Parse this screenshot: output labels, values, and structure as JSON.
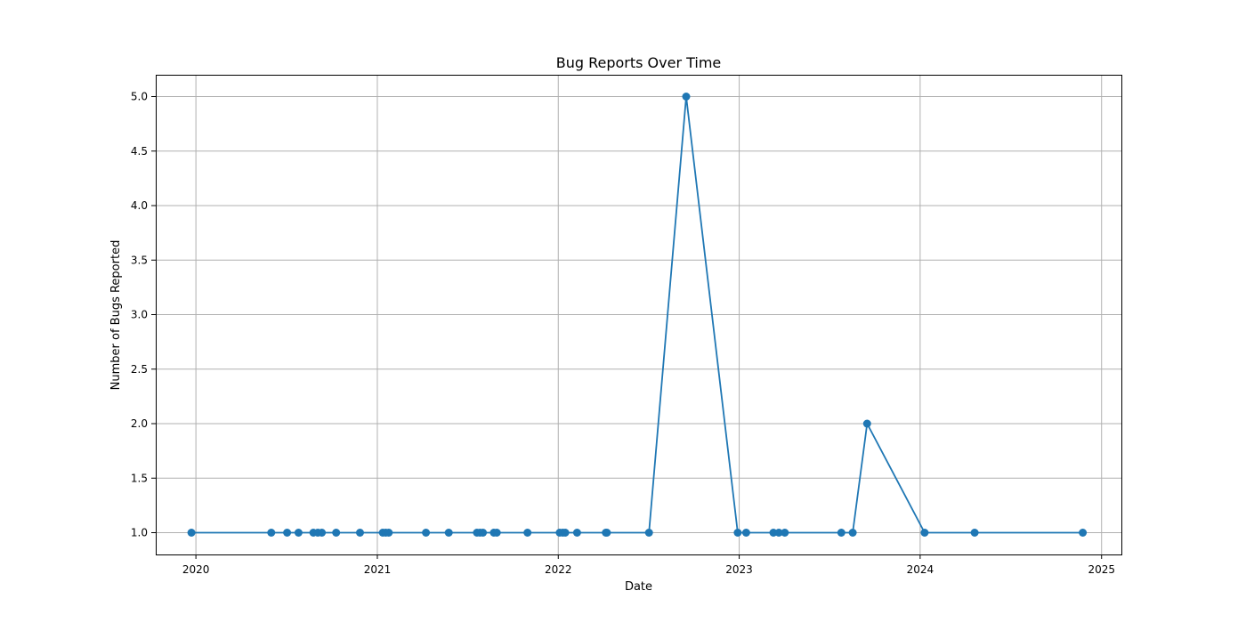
{
  "chart_data": {
    "type": "line",
    "title": "Bug Reports Over Time",
    "xlabel": "Date",
    "ylabel": "Number of Bugs Reported",
    "xlim": [
      "2019-10-12",
      "2025-02-10"
    ],
    "ylim": [
      0.8,
      5.2
    ],
    "x_ticks": [
      "2020",
      "2021",
      "2022",
      "2023",
      "2024",
      "2025"
    ],
    "y_ticks": [
      "1.0",
      "1.5",
      "2.0",
      "2.5",
      "3.0",
      "3.5",
      "4.0",
      "4.5",
      "5.0"
    ],
    "grid": true,
    "color": "#1f77b4",
    "series": [
      {
        "x": [
          "2019-12-23",
          "2020-06-01",
          "2020-07-03",
          "2020-07-26",
          "2020-08-25",
          "2020-09-03",
          "2020-09-11",
          "2020-10-10",
          "2020-11-27",
          "2021-01-12",
          "2021-01-18",
          "2021-01-24",
          "2021-04-09",
          "2021-05-25",
          "2021-07-21",
          "2021-07-27",
          "2021-08-02",
          "2021-08-24",
          "2021-08-30",
          "2021-10-31",
          "2022-01-04",
          "2022-01-10",
          "2022-01-15",
          "2022-02-08",
          "2022-04-07",
          "2022-04-09",
          "2022-07-03",
          "2022-09-16",
          "2022-12-29",
          "2023-01-15",
          "2023-03-11",
          "2023-03-22",
          "2023-04-03",
          "2023-07-26",
          "2023-08-18",
          "2023-09-16",
          "2024-01-10",
          "2024-04-20",
          "2024-11-24"
        ],
        "y": [
          1,
          1,
          1,
          1,
          1,
          1,
          1,
          1,
          1,
          1,
          1,
          1,
          1,
          1,
          1,
          1,
          1,
          1,
          1,
          1,
          1,
          1,
          1,
          1,
          1,
          1,
          1,
          5,
          1,
          1,
          1,
          1,
          1,
          1,
          1,
          2,
          1,
          1,
          1
        ]
      }
    ]
  }
}
